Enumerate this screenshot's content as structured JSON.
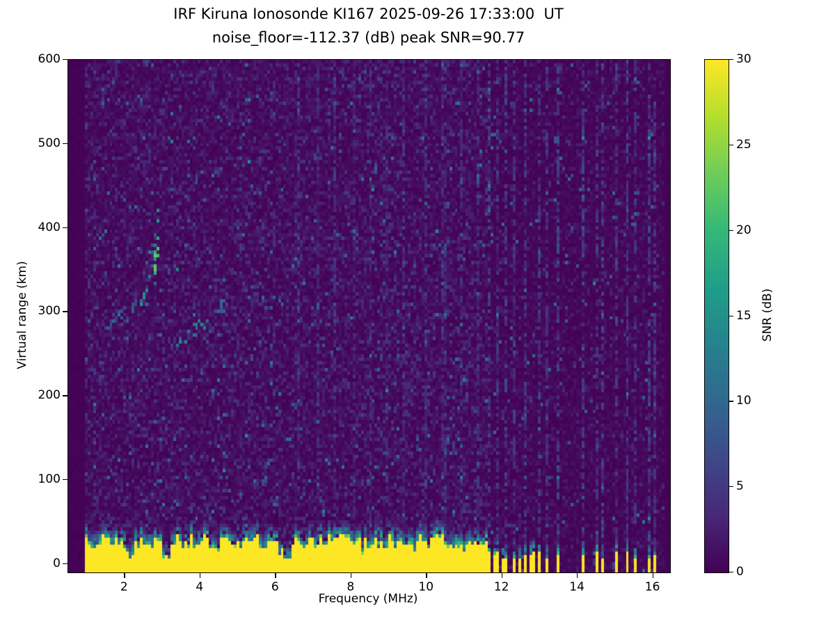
{
  "chart_data": {
    "type": "heatmap",
    "title": "IRF Kiruna Ionosonde KI167 2025-09-26 17:33:00  UT",
    "subtitle": "noise_floor=-112.37 (dB) peak SNR=90.77",
    "xlabel": "Frequency (MHz)",
    "ylabel": "Virtual range (km)",
    "colorbar_label": "SNR (dB)",
    "xlim": [
      0.5,
      16.45
    ],
    "ylim": [
      -10,
      600
    ],
    "clim": [
      0,
      30
    ],
    "x_ticks": [
      2,
      4,
      6,
      8,
      10,
      12,
      14,
      16
    ],
    "y_ticks": [
      0,
      100,
      200,
      300,
      400,
      500,
      600
    ],
    "colorbar_ticks": [
      0,
      5,
      10,
      15,
      20,
      25,
      30
    ],
    "colormap": "viridis",
    "colormap_stops": [
      [
        68,
        1,
        84
      ],
      [
        72,
        40,
        120
      ],
      [
        62,
        73,
        137
      ],
      [
        49,
        104,
        142
      ],
      [
        38,
        130,
        142
      ],
      [
        31,
        158,
        137
      ],
      [
        53,
        183,
        121
      ],
      [
        109,
        205,
        89
      ],
      [
        180,
        222,
        44
      ],
      [
        253,
        231,
        37
      ]
    ],
    "grid": {
      "nx": 218,
      "ny": 148,
      "seed": 167
    },
    "noise": {
      "f_min": 0.95,
      "f_max": 16.3,
      "mean": 1.4,
      "speckle_prob": 0.02,
      "speckle_max": 11,
      "quiet_above": 11.62,
      "quiet_mean": 0.75
    },
    "ground_clutter": {
      "f_min": 0.95,
      "f_max": 11.62,
      "base_height": 18,
      "height_jitter": 16,
      "fringe": 20,
      "dips": [
        [
          3.1,
          0.35
        ],
        [
          6.3,
          0.25
        ],
        [
          2.1,
          0.6
        ],
        [
          4.35,
          0.65
        ]
      ],
      "spikes": [
        11.68,
        11.78,
        11.9,
        12.0,
        12.12,
        12.3,
        12.45,
        12.62,
        12.8,
        12.95,
        13.2,
        13.5,
        14.12,
        14.5,
        14.65,
        15.02,
        15.3,
        15.55,
        15.9,
        16.05
      ]
    },
    "echo_traces": [
      {
        "f0": 2.3,
        "f1": 2.95,
        "r0": 255,
        "r1": 430,
        "spread": 28,
        "density": 0.28,
        "intensity": 16
      },
      {
        "f0": 2.7,
        "f1": 2.92,
        "r0": 335,
        "r1": 385,
        "spread": 18,
        "density": 0.65,
        "intensity": 25
      },
      {
        "f0": 1.45,
        "f1": 2.5,
        "r0": 283,
        "r1": 315,
        "spread": 9,
        "density": 0.4,
        "intensity": 12
      },
      {
        "f0": 3.35,
        "f1": 4.7,
        "r0": 260,
        "r1": 310,
        "spread": 10,
        "density": 0.45,
        "intensity": 15
      },
      {
        "f0": 4.2,
        "f1": 5.6,
        "r0": 300,
        "r1": 335,
        "spread": 8,
        "density": 0.15,
        "intensity": 10
      }
    ],
    "rfi_lines": [
      [
        6.62,
        3
      ],
      [
        7.1,
        2.5
      ],
      [
        7.55,
        3
      ],
      [
        8.05,
        2.5
      ],
      [
        8.5,
        3
      ],
      [
        8.95,
        2.5
      ],
      [
        9.4,
        3
      ],
      [
        9.95,
        2.5
      ],
      [
        10.45,
        3
      ],
      [
        10.9,
        2.5
      ],
      [
        11.35,
        3
      ],
      [
        11.68,
        5
      ],
      [
        11.9,
        4
      ],
      [
        12.12,
        5
      ],
      [
        12.3,
        4
      ],
      [
        12.62,
        5
      ],
      [
        12.95,
        4
      ],
      [
        13.2,
        4
      ],
      [
        13.5,
        5
      ],
      [
        14.12,
        5
      ],
      [
        14.5,
        4
      ],
      [
        14.65,
        5
      ],
      [
        15.02,
        4
      ],
      [
        15.3,
        5
      ],
      [
        15.55,
        4
      ],
      [
        15.9,
        5
      ],
      [
        16.05,
        4
      ]
    ]
  }
}
